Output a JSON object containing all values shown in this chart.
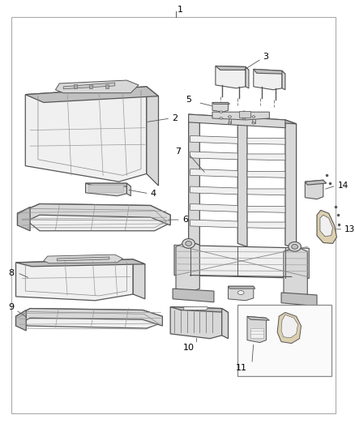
{
  "bg_color": "#ffffff",
  "line_color": "#555555",
  "label_color": "#000000",
  "fill_light": "#f0f0f0",
  "fill_mid": "#d8d8d8",
  "fill_dark": "#c0c0c0",
  "fill_seat": "#e8e8e8",
  "figsize": [
    4.38,
    5.33
  ],
  "dpi": 100
}
